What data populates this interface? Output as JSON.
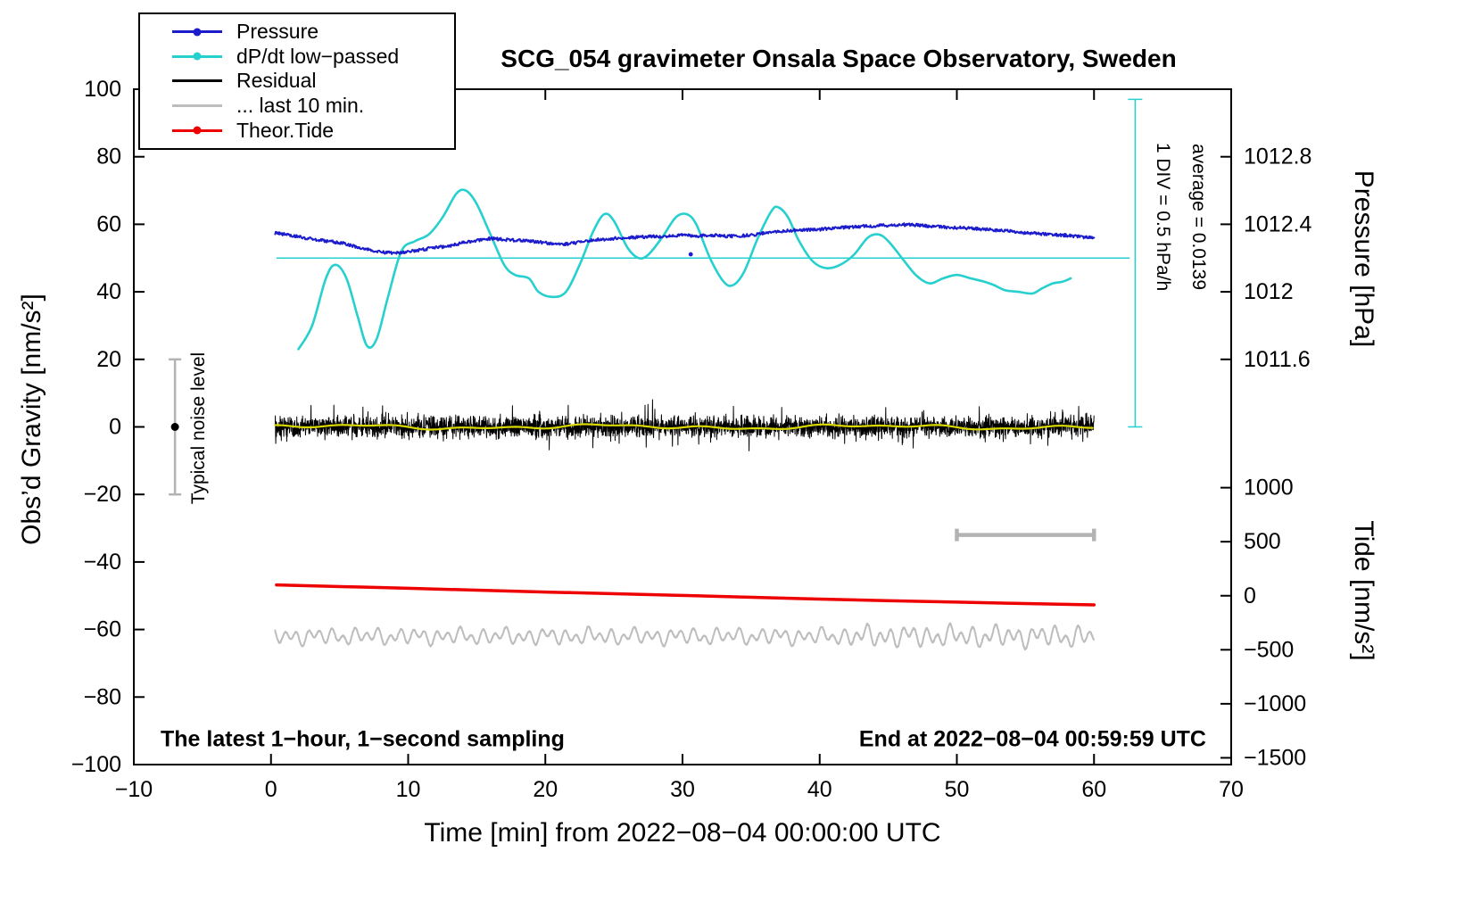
{
  "chart_data": {
    "type": "line",
    "title": "SCG_054 gravimeter Onsala Space Observatory, Sweden",
    "xlabel": "Time [min] from 2022−08−04 00:00:00 UTC",
    "ylabel_left": "Obs’d Gravity [nm/s²]",
    "ylabel_pressure": "Pressure [hPa]",
    "ylabel_tide": "Tide [nm/s²]",
    "annotations": {
      "sampling": "The latest 1−hour, 1−second sampling",
      "end_time": "End at 2022−08−04 00:59:59 UTC",
      "noise_label": "Typical noise level",
      "div_label": "1 DIV = 0.5 hPa/h",
      "average_label": "average = 0.0139"
    },
    "axes": {
      "xlim": [
        -10,
        70
      ],
      "x_ticks": [
        -10,
        0,
        10,
        20,
        30,
        40,
        50,
        60,
        70
      ],
      "ylim_left": [
        -100,
        100
      ],
      "y_ticks_left": [
        -100,
        -80,
        -60,
        -40,
        -20,
        0,
        20,
        40,
        60,
        80,
        100
      ],
      "pressure_ticks": [
        1011.6,
        1012,
        1012.4,
        1012.8
      ],
      "pressure_to_gravity": {
        "p0": 1012.2,
        "g0": 50,
        "g_per_hpa": 50
      },
      "tide_ticks": [
        1000,
        500,
        0,
        -500,
        -1000,
        -1500
      ],
      "tide_to_gravity": {
        "g0": -50,
        "g_per_500": 16
      },
      "grid": false
    },
    "legend": [
      {
        "label": "Pressure",
        "color": "#1c1ccd",
        "marker": "dot"
      },
      {
        "label": "dP/dt low−passed",
        "color": "#26d0cf",
        "marker": "dot"
      },
      {
        "label": "Residual",
        "color": "#000000",
        "marker": "line"
      },
      {
        "label": "... last 10 min.",
        "color": "#bdbdbd",
        "marker": "line"
      },
      {
        "label": "Theor.Tide",
        "color": "#ee0000",
        "marker": "dot"
      }
    ],
    "series": {
      "pressure": {
        "name": "Pressure",
        "color": "#1c1ccd",
        "x": [
          0.3,
          1,
          2,
          3,
          4,
          5,
          6,
          7,
          8,
          9,
          10,
          11,
          12,
          13,
          14,
          15,
          16,
          17,
          18,
          19,
          20,
          21,
          22,
          23,
          24,
          25,
          26,
          27,
          28,
          29,
          30,
          31,
          32,
          33,
          34,
          35,
          36,
          37,
          38,
          39,
          40,
          41,
          42,
          43,
          44,
          45,
          46,
          47,
          48,
          49,
          50,
          51,
          52,
          53,
          54,
          55,
          56,
          57,
          58,
          59,
          60
        ],
        "hpa": [
          1012.35,
          1012.34,
          1012.326,
          1012.312,
          1012.302,
          1012.292,
          1012.272,
          1012.252,
          1012.236,
          1012.228,
          1012.238,
          1012.25,
          1012.262,
          1012.272,
          1012.292,
          1012.304,
          1012.316,
          1012.31,
          1012.304,
          1012.3,
          1012.29,
          1012.28,
          1012.288,
          1012.3,
          1012.31,
          1012.316,
          1012.32,
          1012.324,
          1012.328,
          1012.33,
          1012.338,
          1012.33,
          1012.336,
          1012.33,
          1012.33,
          1012.336,
          1012.348,
          1012.358,
          1012.364,
          1012.368,
          1012.37,
          1012.378,
          1012.382,
          1012.388,
          1012.39,
          1012.394,
          1012.398,
          1012.396,
          1012.39,
          1012.384,
          1012.38,
          1012.376,
          1012.37,
          1012.364,
          1012.358,
          1012.35,
          1012.344,
          1012.34,
          1012.334,
          1012.326,
          1012.32
        ],
        "outlier": {
          "x": 30.6,
          "hpa": 1012.222
        }
      },
      "dpdt": {
        "name": "dP/dt low−passed",
        "color": "#26d0cf",
        "units": "plotted on left axis; 1 DIV = 0.5 hPa/h",
        "x": [
          2,
          3,
          4,
          4.7,
          5.5,
          6.3,
          7,
          7.7,
          8.5,
          9.5,
          10.5,
          11.5,
          12.5,
          13.5,
          14.2,
          15,
          16,
          17,
          17.8,
          18.8,
          19.5,
          20.5,
          21.5,
          22.5,
          23.5,
          24.3,
          25,
          26,
          26.8,
          27.5,
          28.5,
          29.5,
          30.3,
          31,
          32,
          33,
          33.7,
          34.5,
          35.5,
          36.5,
          37,
          37.7,
          38.5,
          39.5,
          40.5,
          41.5,
          42.5,
          43.5,
          44.3,
          45,
          46,
          47,
          48,
          49,
          50,
          51,
          52,
          52.7,
          53.5,
          54.5,
          55.5,
          56.2,
          57,
          57.7,
          58.3
        ],
        "y": [
          23,
          30,
          44,
          48,
          44,
          33,
          24,
          26,
          38,
          52,
          55,
          57,
          62,
          69,
          70,
          66,
          57,
          48,
          45,
          44,
          40,
          38.5,
          40,
          48,
          58,
          63,
          61,
          53,
          50,
          51,
          56,
          62,
          63,
          60,
          50,
          43,
          42,
          46,
          56,
          64,
          65,
          62,
          55,
          49,
          47,
          48,
          51,
          56,
          57,
          55,
          50,
          45,
          42.5,
          44,
          45,
          44,
          43,
          42,
          40.5,
          40,
          39.5,
          41,
          42.5,
          43,
          44
        ]
      },
      "dpdt_average_line": {
        "y": 50,
        "x_range": [
          0.4,
          62.6
        ],
        "average_value": 0.0139
      },
      "div_ruler": {
        "x": 63,
        "g_range": [
          0,
          97
        ]
      },
      "residual": {
        "name": "Residual",
        "color": "#000000",
        "lowpass_color": "#d9d900",
        "center": 0,
        "sigma": 1.5,
        "spike_amp": 5.5,
        "x_range": [
          0.3,
          60
        ]
      },
      "last10": {
        "name": "... last 10 min.",
        "color": "#bdbdbd",
        "center": -62,
        "amp": 2.5,
        "x_range": [
          0.3,
          60
        ]
      },
      "theor_tide": {
        "name": "Theor.Tide",
        "color": "#ee0000",
        "x": [
          0.4,
          10,
          20,
          30,
          40,
          50,
          60
        ],
        "y": [
          -46.8,
          -47.8,
          -48.9,
          -49.9,
          -51.0,
          -51.9,
          -52.7
        ]
      },
      "scale_bar": {
        "x_range": [
          50,
          60
        ],
        "y": -32,
        "color": "#b3b3b3"
      },
      "noise_bar": {
        "x": -7,
        "y_range": [
          -20,
          20
        ],
        "dot_y": 0,
        "color": "#b3b3b3"
      }
    }
  }
}
